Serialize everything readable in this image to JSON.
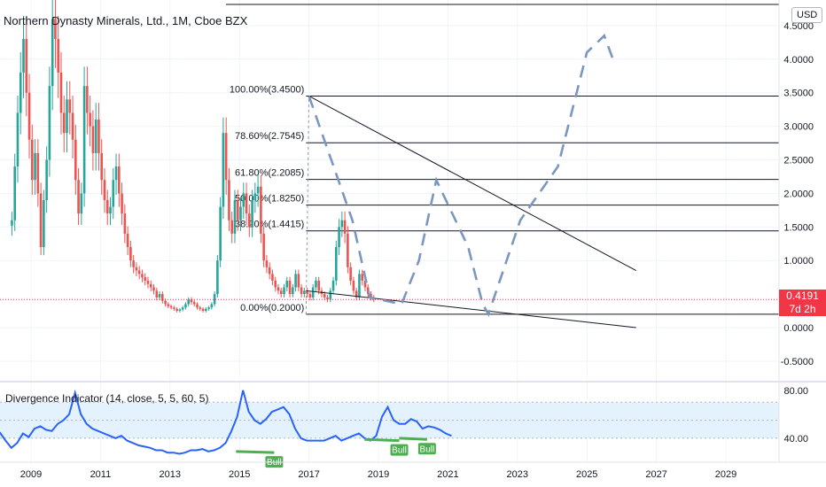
{
  "header": {
    "title": "Northern Dynasty Minerals, Ltd., 1M, Cboe BZX",
    "currency_button": "USD"
  },
  "price_label": {
    "price": "0.4191",
    "countdown": "7d 2h"
  },
  "oscillator": {
    "title": "Divergence Indicator (14, close, 5, 5, 60, 5)",
    "y_ticks": [
      "80.00",
      "40.00"
    ],
    "bull_labels": [
      "Bull",
      "Bull",
      "Bull"
    ]
  },
  "chart_data": [
    {
      "type": "candlestick",
      "x_ticks": [
        "2009",
        "2011",
        "2013",
        "2015",
        "2017",
        "2019",
        "2021",
        "2023",
        "2025",
        "2027",
        "2029"
      ],
      "y_ticks": [
        "4.5000",
        "4.0000",
        "3.5000",
        "3.0000",
        "2.5000",
        "2.0000",
        "1.5000",
        "1.0000",
        "0.0000",
        "-0.5000"
      ],
      "ylim": [
        -0.55,
        4.65
      ],
      "fib_levels": [
        {
          "label": "100.00%(3.4500)",
          "value": 3.45
        },
        {
          "label": "78.60%(2.7545)",
          "value": 2.7545
        },
        {
          "label": "61.80%(2.2085)",
          "value": 2.2085
        },
        {
          "label": "50.00%(1.8250)",
          "value": 1.825
        },
        {
          "label": "38.20%(1.4415)",
          "value": 1.4415
        },
        {
          "label": "0.00%(0.2000)",
          "value": 0.2
        }
      ],
      "candles_close": [
        1.6,
        2.4,
        3.2,
        3.8,
        4.3,
        3.5,
        2.8,
        2.2,
        2.6,
        2.0,
        1.2,
        1.9,
        2.5,
        3.6,
        4.6,
        4.3,
        3.8,
        3.2,
        2.9,
        3.4,
        3.2,
        2.8,
        2.2,
        1.7,
        2.0,
        3.6,
        3.2,
        3.0,
        2.6,
        3.1,
        2.6,
        2.2,
        1.9,
        1.7,
        1.8,
        2.2,
        2.4,
        2.0,
        1.7,
        1.4,
        1.2,
        1.0,
        0.9,
        0.85,
        0.8,
        0.75,
        0.7,
        0.65,
        0.6,
        0.55,
        0.45,
        0.5,
        0.4,
        0.35,
        0.32,
        0.3,
        0.28,
        0.25,
        0.27,
        0.3,
        0.35,
        0.42,
        0.38,
        0.35,
        0.3,
        0.28,
        0.25,
        0.28,
        0.3,
        0.35,
        0.5,
        1.0,
        1.8,
        2.9,
        2.2,
        1.6,
        1.4,
        1.9,
        1.6,
        1.8,
        2.0,
        1.7,
        1.5,
        1.9,
        2.0,
        2.1,
        1.4,
        1.0,
        0.9,
        0.8,
        0.7,
        0.6,
        0.55,
        0.5,
        0.6,
        0.7,
        0.5,
        0.6,
        0.8,
        0.6,
        0.5,
        0.55,
        0.5,
        0.45,
        0.6,
        0.7,
        0.55,
        0.5,
        0.45,
        0.42,
        0.55,
        0.7,
        1.2,
        1.5,
        1.6,
        1.4,
        0.9,
        0.7,
        0.55,
        0.45,
        0.8,
        0.7,
        0.6,
        0.5,
        0.45,
        0.42
      ],
      "wedge_upper": {
        "from": [
          "2017-01",
          3.45
        ],
        "to": [
          "2026-06",
          0.85
        ]
      },
      "wedge_lower": {
        "from": [
          "2016-12",
          0.55
        ],
        "to": [
          "2026-06",
          0.0
        ]
      },
      "projection_path": [
        [
          "2017-01",
          3.45
        ],
        [
          "2018-04",
          1.6
        ],
        [
          "2018-10",
          0.45
        ],
        [
          "2019-09",
          0.35
        ],
        [
          "2020-03",
          1.0
        ],
        [
          "2020-09",
          2.2
        ],
        [
          "2021-08",
          1.2
        ],
        [
          "2022-01",
          0.35
        ],
        [
          "2022-03",
          0.2
        ],
        [
          "2023-02",
          1.6
        ],
        [
          "2024-03",
          2.4
        ],
        [
          "2025-01",
          4.1
        ],
        [
          "2025-07",
          4.35
        ],
        [
          "2025-10",
          4.0
        ]
      ],
      "colors": {
        "up": "#26a69a",
        "down": "#ef5350",
        "projection": "#7b96bf",
        "fib": "#131722",
        "price_line": "#f23645"
      }
    },
    {
      "type": "line",
      "name": "Divergence Indicator",
      "ylim": [
        20,
        85
      ],
      "band": [
        40,
        70
      ],
      "values": [
        45,
        38,
        32,
        36,
        44,
        41,
        48,
        50,
        47,
        46,
        52,
        55,
        60,
        78,
        60,
        52,
        48,
        46,
        44,
        42,
        40,
        42,
        38,
        36,
        34,
        33,
        32,
        30,
        30,
        28,
        28,
        27,
        28,
        30,
        30,
        31,
        29,
        30,
        32,
        36,
        46,
        58,
        80,
        62,
        55,
        52,
        56,
        62,
        64,
        66,
        60,
        48,
        40,
        38,
        38,
        38,
        38,
        40,
        42,
        38,
        40,
        42,
        44,
        40,
        38,
        42,
        58,
        66,
        55,
        52,
        52,
        56,
        54,
        48,
        50,
        49,
        47,
        44,
        42
      ]
    }
  ]
}
